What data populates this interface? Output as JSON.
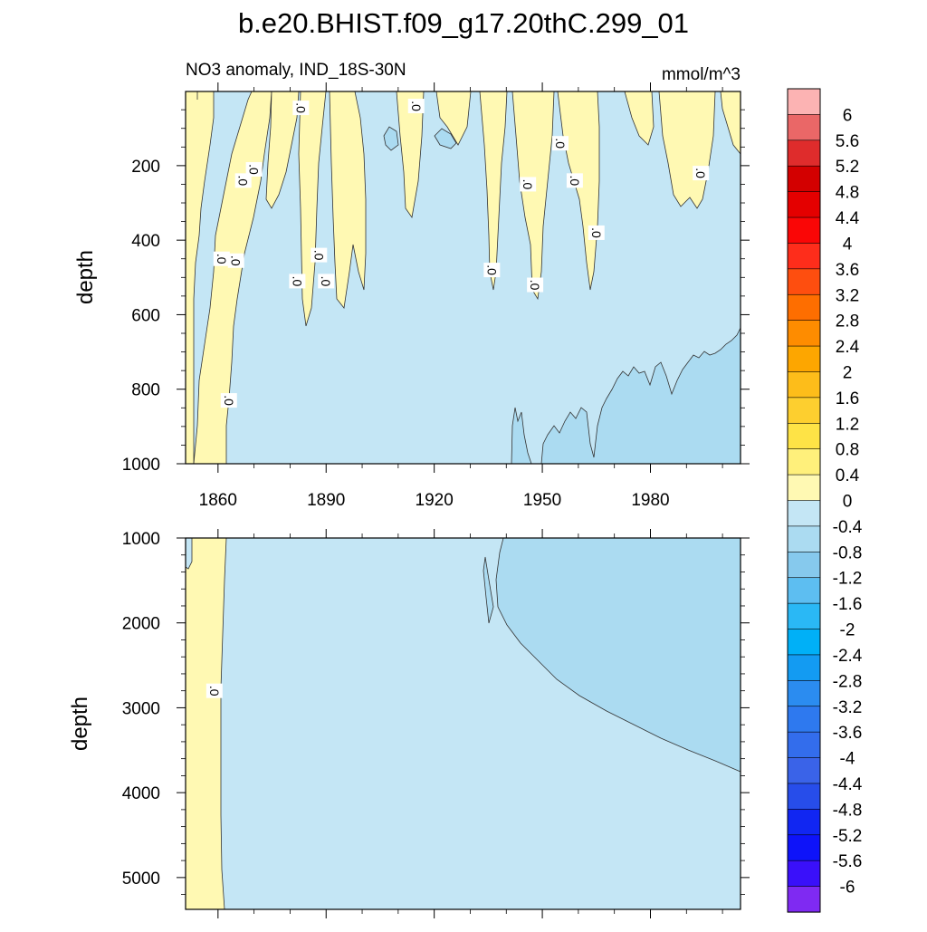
{
  "chart_data": {
    "type": "contour",
    "title": "b.e20.BHIST.f09_g17.20thC.299_01",
    "subtitle_left": "NO3 anomaly, IND_18S-30N",
    "subtitle_right": "mmol/m^3",
    "x_ticks": [
      "1860",
      "1890",
      "1920",
      "1950",
      "1980"
    ],
    "x_range": [
      1851,
      2005
    ],
    "colorbar_labels": [
      "6",
      "5.6",
      "5.2",
      "4.8",
      "4.4",
      "4",
      "3.6",
      "3.2",
      "2.8",
      "2.4",
      "2",
      "1.6",
      "1.2",
      "0.8",
      "0.4",
      "0",
      "-0.4",
      "-0.8",
      "-1.2",
      "-1.6",
      "-2",
      "-2.4",
      "-2.8",
      "-3.2",
      "-3.6",
      "-4",
      "-4.4",
      "-4.8",
      "-5.2",
      "-5.6",
      "-6"
    ],
    "colorbar_colors": [
      "#FCB3B3",
      "#EA6767",
      "#DF2C2C",
      "#D30000",
      "#E40000",
      "#FA0606",
      "#FE2D1B",
      "#FE4E0F",
      "#FE6E00",
      "#FE8C00",
      "#FDA600",
      "#FDBD1A",
      "#FDCF2F",
      "#FEE346",
      "#FFF07B",
      "#FFF9B3",
      "#C4E6F5",
      "#ABDBF1",
      "#86C9ED",
      "#5DBEF1",
      "#2AB8F5",
      "#00B0F7",
      "#139BF2",
      "#2B8CF0",
      "#2E79EF",
      "#336DEC",
      "#3A63E8",
      "#274DEA",
      "#1126F2",
      "#0E13F9",
      "#3A10FA",
      "#7F2AF2"
    ],
    "top_panel": {
      "ylabel": "depth",
      "y_ticks": [
        "200",
        "400",
        "600",
        "800",
        "1000"
      ],
      "y_range": [
        1,
        1000
      ],
      "contour_labels": [
        {
          "text": ".0",
          "x": 1883,
          "y": 45
        },
        {
          "text": ".0",
          "x": 1915,
          "y": 40
        },
        {
          "text": ".0",
          "x": 1955,
          "y": 140
        },
        {
          "text": ".0",
          "x": 1867,
          "y": 240
        },
        {
          "text": ".0",
          "x": 1870,
          "y": 210
        },
        {
          "text": ".0",
          "x": 1946,
          "y": 250
        },
        {
          "text": ".0",
          "x": 1959,
          "y": 240
        },
        {
          "text": ".0",
          "x": 1994,
          "y": 220
        },
        {
          "text": ".0",
          "x": 1861,
          "y": 450
        },
        {
          "text": ".0",
          "x": 1865,
          "y": 455
        },
        {
          "text": ".0",
          "x": 1888,
          "y": 440
        },
        {
          "text": ".0",
          "x": 1936,
          "y": 480
        },
        {
          "text": ".0",
          "x": 1965,
          "y": 380
        },
        {
          "text": ".0",
          "x": 1882,
          "y": 510
        },
        {
          "text": ".0",
          "x": 1890,
          "y": 510
        },
        {
          "text": ".0",
          "x": 1948,
          "y": 520
        },
        {
          "text": ".0",
          "x": 1863,
          "y": 830
        }
      ]
    },
    "bottom_panel": {
      "ylabel": "depth",
      "y_ticks": [
        "1000",
        "2000",
        "3000",
        "4000",
        "5000"
      ],
      "y_range": [
        1000,
        5375
      ],
      "contour_labels": [
        {
          "text": ".0",
          "x": 1859,
          "y": 2800
        }
      ]
    }
  }
}
